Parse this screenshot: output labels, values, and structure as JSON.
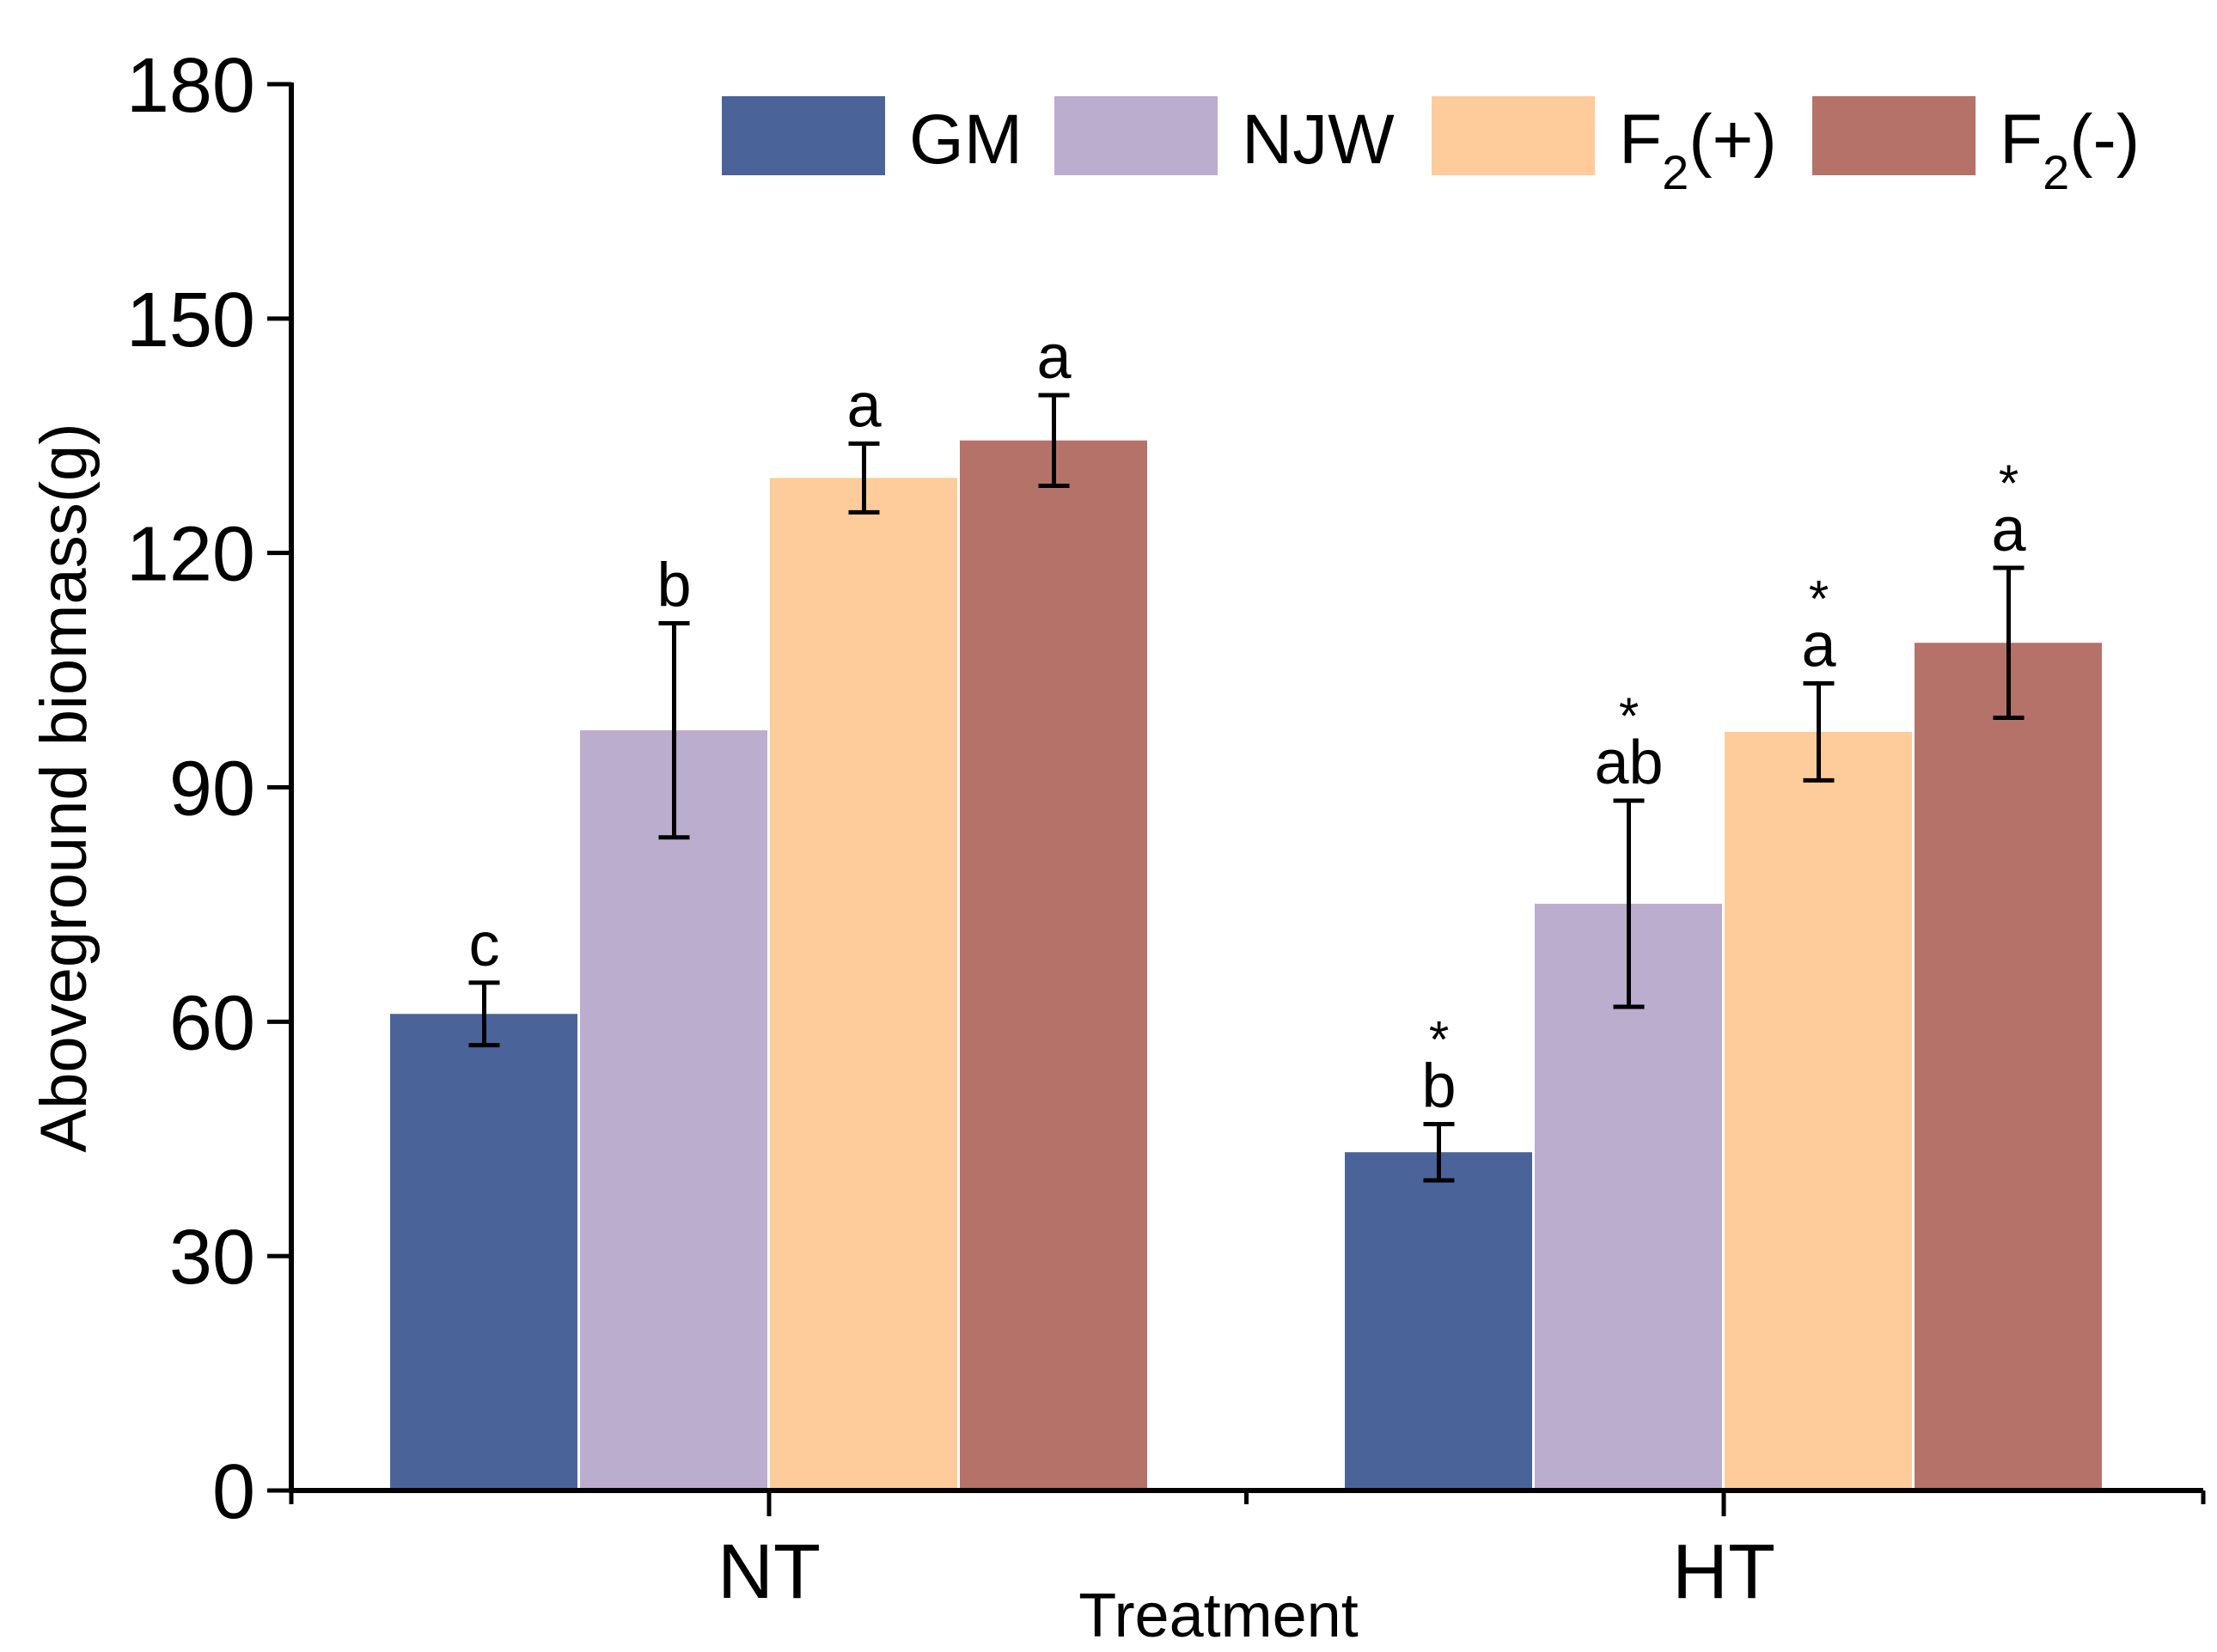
{
  "chart_data": {
    "type": "bar",
    "title": "",
    "xlabel": "Treatment",
    "ylabel": "Aboveground biomass(g)",
    "ylim": [
      0,
      180
    ],
    "yticks": [
      0,
      30,
      60,
      90,
      120,
      150,
      180
    ],
    "categories": [
      "NT",
      "HT"
    ],
    "legend_position": "top-right",
    "grid": false,
    "series": [
      {
        "name": "GM",
        "name_parts": [
          "GM",
          "",
          ""
        ],
        "color": "#4a6399",
        "values": [
          61.0,
          43.3
        ],
        "errors": [
          4.0,
          3.6
        ],
        "letters": [
          "c",
          "b"
        ],
        "stars": [
          "",
          "*"
        ]
      },
      {
        "name": "NJW",
        "name_parts": [
          "NJW",
          "",
          ""
        ],
        "color": "#bbadcd",
        "values": [
          97.3,
          75.1
        ],
        "errors": [
          13.7,
          13.2
        ],
        "letters": [
          "b",
          "ab"
        ],
        "stars": [
          "",
          "*"
        ]
      },
      {
        "name": "F2(+)",
        "name_parts": [
          "F",
          "2",
          "(+)"
        ],
        "color": "#fdcc9a",
        "values": [
          129.6,
          97.1
        ],
        "errors": [
          4.4,
          6.2
        ],
        "letters": [
          "a",
          "a"
        ],
        "stars": [
          "",
          "*"
        ]
      },
      {
        "name": "F2(-)",
        "name_parts": [
          "F",
          "2",
          "(-)"
        ],
        "color": "#b47269",
        "values": [
          134.4,
          108.5
        ],
        "errors": [
          5.8,
          9.6
        ],
        "letters": [
          "a",
          "a"
        ],
        "stars": [
          "",
          "*"
        ]
      }
    ]
  }
}
